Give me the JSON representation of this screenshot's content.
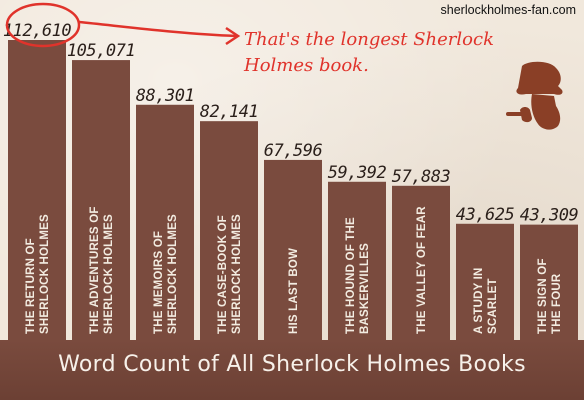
{
  "site": "sherlockholmes-fan.com",
  "annotation": {
    "line1": "That's the longest Sherlock",
    "line2": "Holmes book."
  },
  "colors": {
    "bar": "#7a4b3e",
    "accent": "#e0332b",
    "background": "#f1e8dc"
  },
  "chart_data": {
    "type": "bar",
    "title": "Word Count of All Sherlock Holmes Books",
    "categories": [
      [
        "THE RETURN OF",
        "SHERLOCK HOLMES"
      ],
      [
        "THE ADVENTURES OF",
        "SHERLOCK HOLMES"
      ],
      [
        "THE MEMOIRS OF",
        "SHERLOCK HOLMES"
      ],
      [
        "THE CASE-BOOK OF",
        "SHERLOCK HOLMES"
      ],
      [
        "HIS LAST BOW"
      ],
      [
        "THE HOUND OF THE",
        "BASKERVILLES"
      ],
      [
        "THE VALLEY OF FEAR"
      ],
      [
        "A STUDY IN",
        "SCARLET"
      ],
      [
        "THE SIGN OF",
        "THE FOUR"
      ]
    ],
    "values": [
      112610,
      105071,
      88301,
      82141,
      67596,
      59392,
      57883,
      43625,
      43309
    ],
    "value_labels": [
      "112,610",
      "105,071",
      "88,301",
      "82,141",
      "67,596",
      "59,392",
      "57,883",
      "43,625",
      "43,309"
    ],
    "highlight_index": 0
  }
}
